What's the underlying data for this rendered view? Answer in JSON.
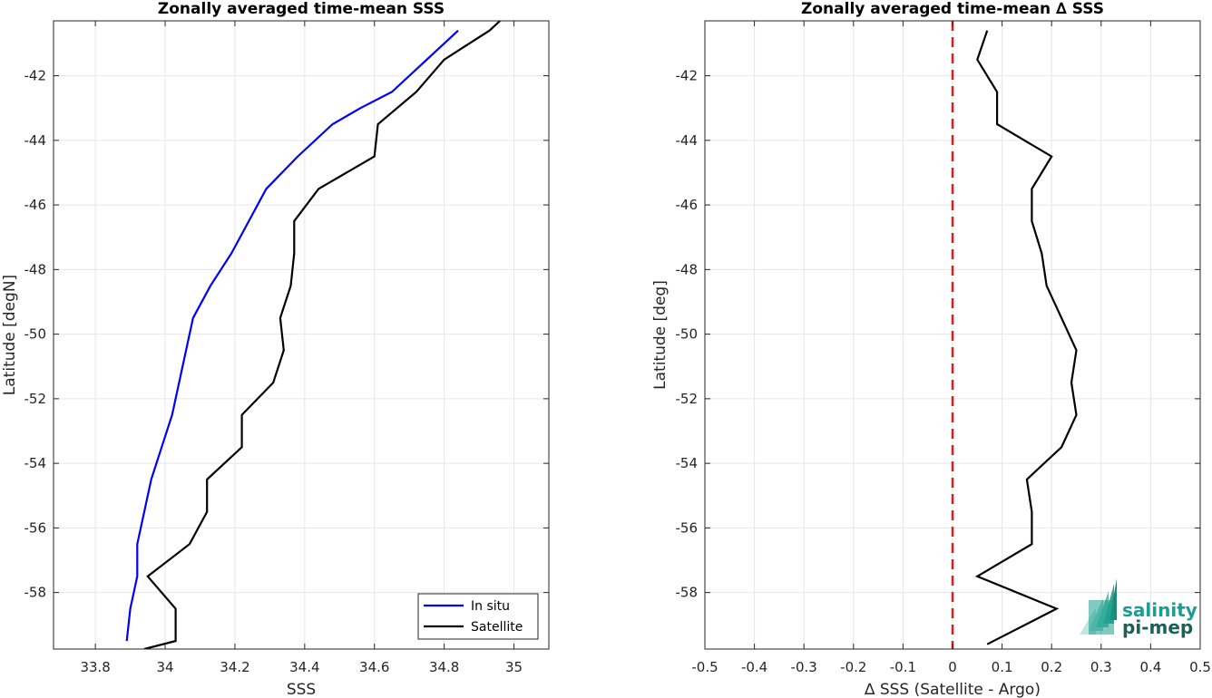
{
  "chart_data": [
    {
      "type": "line",
      "title": "Zonally averaged time-mean SSS",
      "xlabel": "SSS",
      "ylabel": "Latitude [degN]",
      "xlim": [
        33.68,
        35.1
      ],
      "ylim": [
        -59.75,
        -40.3
      ],
      "xticks": [
        "33.8",
        "34",
        "34.2",
        "34.4",
        "34.6",
        "34.8",
        "35"
      ],
      "xtick_values": [
        33.8,
        34.0,
        34.2,
        34.4,
        34.6,
        34.8,
        35.0
      ],
      "yticks": [
        "-42",
        "-44",
        "-46",
        "-48",
        "-50",
        "-52",
        "-54",
        "-56",
        "-58"
      ],
      "ytick_values": [
        -42,
        -44,
        -46,
        -48,
        -50,
        -52,
        -54,
        -56,
        -58
      ],
      "grid": true,
      "legend_placement": "bottom-right",
      "series": [
        {
          "name": "In situ",
          "color": "#0000ff",
          "points": [
            [
              34.84,
              -40.6
            ],
            [
              34.75,
              -41.5
            ],
            [
              34.65,
              -42.5
            ],
            [
              34.56,
              -43.0
            ],
            [
              34.48,
              -43.5
            ],
            [
              34.38,
              -44.5
            ],
            [
              34.29,
              -45.5
            ],
            [
              34.24,
              -46.5
            ],
            [
              34.19,
              -47.5
            ],
            [
              34.13,
              -48.5
            ],
            [
              34.08,
              -49.5
            ],
            [
              34.06,
              -50.5
            ],
            [
              34.04,
              -51.5
            ],
            [
              34.02,
              -52.5
            ],
            [
              33.99,
              -53.5
            ],
            [
              33.96,
              -54.5
            ],
            [
              33.94,
              -55.5
            ],
            [
              33.92,
              -56.5
            ],
            [
              33.92,
              -57.5
            ],
            [
              33.9,
              -58.5
            ],
            [
              33.89,
              -59.5
            ]
          ]
        },
        {
          "name": "Satellite",
          "color": "#000000",
          "points": [
            [
              34.96,
              -40.3
            ],
            [
              34.93,
              -40.6
            ],
            [
              34.8,
              -41.5
            ],
            [
              34.72,
              -42.5
            ],
            [
              34.61,
              -43.5
            ],
            [
              34.6,
              -44.5
            ],
            [
              34.44,
              -45.5
            ],
            [
              34.37,
              -46.5
            ],
            [
              34.37,
              -47.5
            ],
            [
              34.36,
              -48.5
            ],
            [
              34.33,
              -49.5
            ],
            [
              34.34,
              -50.5
            ],
            [
              34.31,
              -51.5
            ],
            [
              34.22,
              -52.5
            ],
            [
              34.22,
              -53.5
            ],
            [
              34.12,
              -54.5
            ],
            [
              34.12,
              -55.5
            ],
            [
              34.07,
              -56.5
            ],
            [
              33.95,
              -57.5
            ],
            [
              34.03,
              -58.5
            ],
            [
              34.03,
              -59.5
            ],
            [
              33.94,
              -59.75
            ]
          ]
        }
      ]
    },
    {
      "type": "line",
      "title": "Zonally averaged time-mean ∆ SSS",
      "xlabel": "∆ SSS (Satellite - Argo)",
      "ylabel": "Latitude [deg]",
      "xlim": [
        -0.5,
        0.5
      ],
      "ylim": [
        -59.75,
        -40.3
      ],
      "xticks": [
        "-0.5",
        "-0.4",
        "-0.3",
        "-0.2",
        "-0.1",
        "0",
        "0.1",
        "0.2",
        "0.3",
        "0.4",
        "0.5"
      ],
      "xtick_values": [
        -0.5,
        -0.4,
        -0.3,
        -0.2,
        -0.1,
        0,
        0.1,
        0.2,
        0.3,
        0.4,
        0.5
      ],
      "yticks": [
        "-42",
        "-44",
        "-46",
        "-48",
        "-50",
        "-52",
        "-54",
        "-56",
        "-58"
      ],
      "ytick_values": [
        -42,
        -44,
        -46,
        -48,
        -50,
        -52,
        -54,
        -56,
        -58
      ],
      "grid": true,
      "reference_line": {
        "x": 0,
        "color": "#e41a1c",
        "style": "dashed"
      },
      "series": [
        {
          "color": "#000000",
          "points": [
            [
              0.07,
              -40.6
            ],
            [
              0.05,
              -41.5
            ],
            [
              0.09,
              -42.5
            ],
            [
              0.09,
              -43.5
            ],
            [
              0.2,
              -44.5
            ],
            [
              0.16,
              -45.5
            ],
            [
              0.16,
              -46.5
            ],
            [
              0.18,
              -47.5
            ],
            [
              0.19,
              -48.5
            ],
            [
              0.22,
              -49.5
            ],
            [
              0.25,
              -50.5
            ],
            [
              0.24,
              -51.5
            ],
            [
              0.25,
              -52.5
            ],
            [
              0.22,
              -53.5
            ],
            [
              0.15,
              -54.5
            ],
            [
              0.16,
              -55.5
            ],
            [
              0.16,
              -56.5
            ],
            [
              0.05,
              -57.5
            ],
            [
              0.21,
              -58.5
            ],
            [
              0.07,
              -59.6
            ]
          ]
        }
      ]
    }
  ],
  "logo": {
    "line1": "salinity",
    "line2": "pi-mep",
    "color": "#1a9e8f"
  }
}
